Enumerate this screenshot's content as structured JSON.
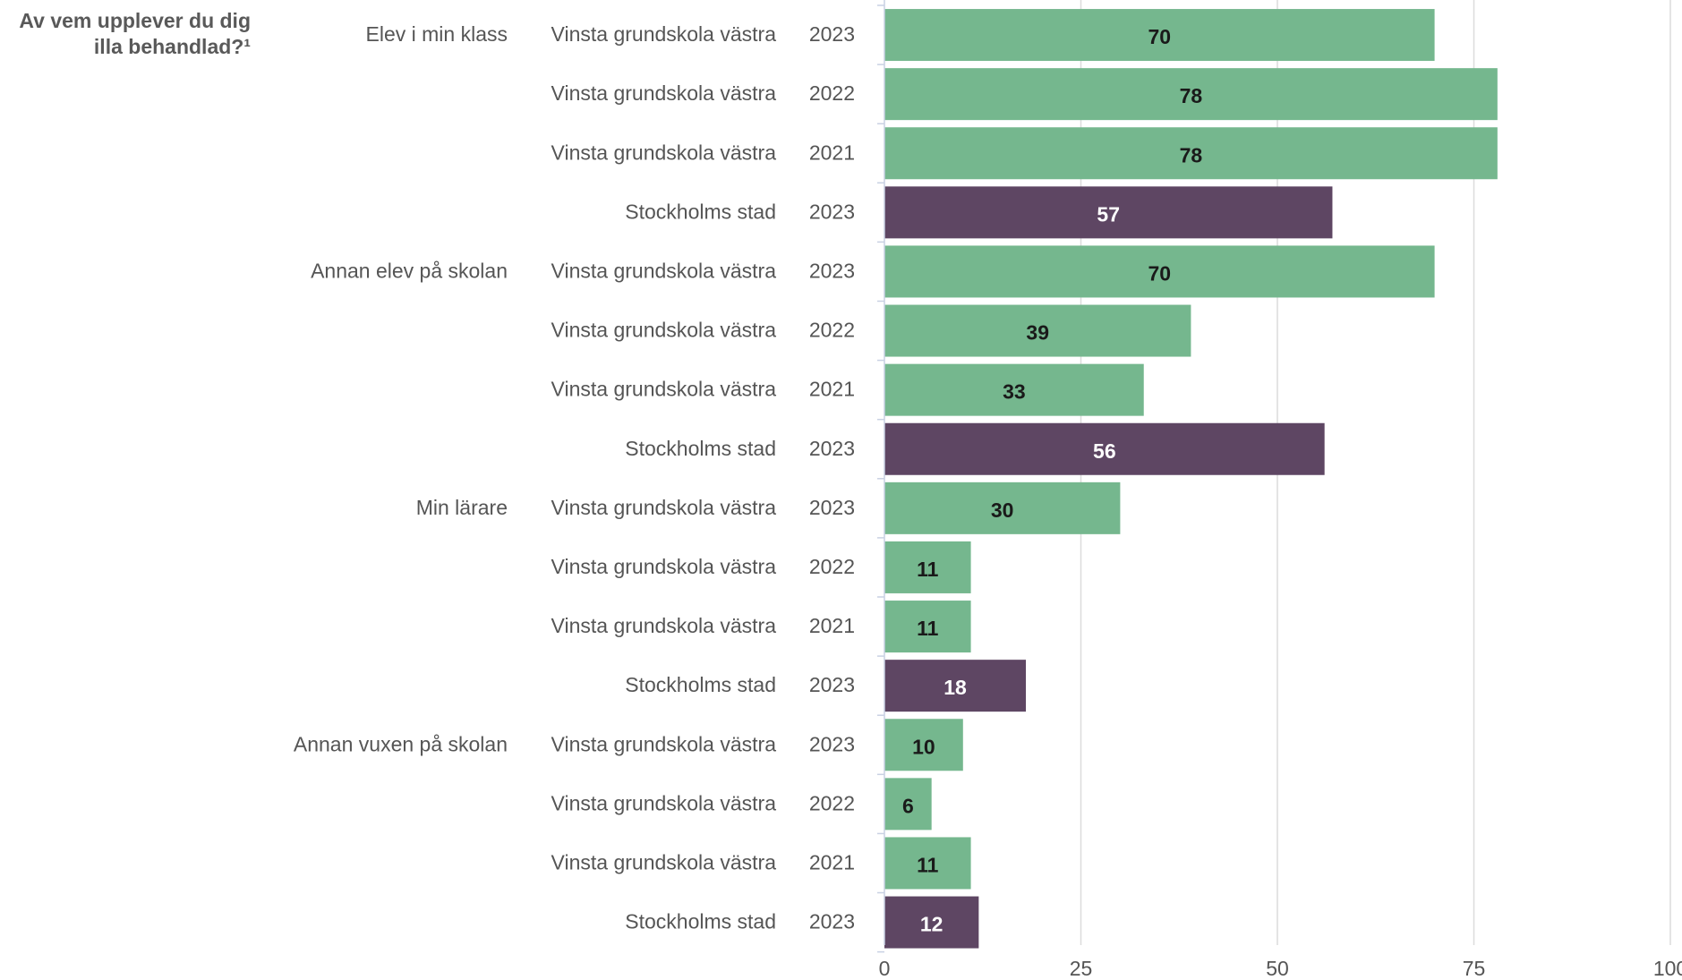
{
  "chart_data": {
    "type": "bar",
    "orientation": "horizontal",
    "title": "Av vem upplever du dig illa behandlad?¹",
    "title_lines": [
      "Av vem upplever du dig",
      "illa behandlad?¹"
    ],
    "xlim": [
      0,
      100
    ],
    "xticks": [
      0,
      25,
      50,
      75,
      100
    ],
    "grid": true,
    "colors": {
      "school": "#75b78e",
      "city": "#5e4663",
      "school_label": "#1a1a1a",
      "city_label": "#ffffff"
    },
    "groups": [
      {
        "label": "Elev i min klass",
        "rows": [
          {
            "unit": "Vinsta grundskola västra",
            "year": "2023",
            "value": 70,
            "kind": "school"
          },
          {
            "unit": "Vinsta grundskola västra",
            "year": "2022",
            "value": 78,
            "kind": "school"
          },
          {
            "unit": "Vinsta grundskola västra",
            "year": "2021",
            "value": 78,
            "kind": "school"
          },
          {
            "unit": "Stockholms stad",
            "year": "2023",
            "value": 57,
            "kind": "city"
          }
        ]
      },
      {
        "label": "Annan elev på skolan",
        "rows": [
          {
            "unit": "Vinsta grundskola västra",
            "year": "2023",
            "value": 70,
            "kind": "school"
          },
          {
            "unit": "Vinsta grundskola västra",
            "year": "2022",
            "value": 39,
            "kind": "school"
          },
          {
            "unit": "Vinsta grundskola västra",
            "year": "2021",
            "value": 33,
            "kind": "school"
          },
          {
            "unit": "Stockholms stad",
            "year": "2023",
            "value": 56,
            "kind": "city"
          }
        ]
      },
      {
        "label": "Min lärare",
        "rows": [
          {
            "unit": "Vinsta grundskola västra",
            "year": "2023",
            "value": 30,
            "kind": "school"
          },
          {
            "unit": "Vinsta grundskola västra",
            "year": "2022",
            "value": 11,
            "kind": "school"
          },
          {
            "unit": "Vinsta grundskola västra",
            "year": "2021",
            "value": 11,
            "kind": "school"
          },
          {
            "unit": "Stockholms stad",
            "year": "2023",
            "value": 18,
            "kind": "city"
          }
        ]
      },
      {
        "label": "Annan vuxen på skolan",
        "rows": [
          {
            "unit": "Vinsta grundskola västra",
            "year": "2023",
            "value": 10,
            "kind": "school"
          },
          {
            "unit": "Vinsta grundskola västra",
            "year": "2022",
            "value": 6,
            "kind": "school"
          },
          {
            "unit": "Vinsta grundskola västra",
            "year": "2021",
            "value": 11,
            "kind": "school"
          },
          {
            "unit": "Stockholms stad",
            "year": "2023",
            "value": 12,
            "kind": "city"
          }
        ]
      }
    ]
  }
}
